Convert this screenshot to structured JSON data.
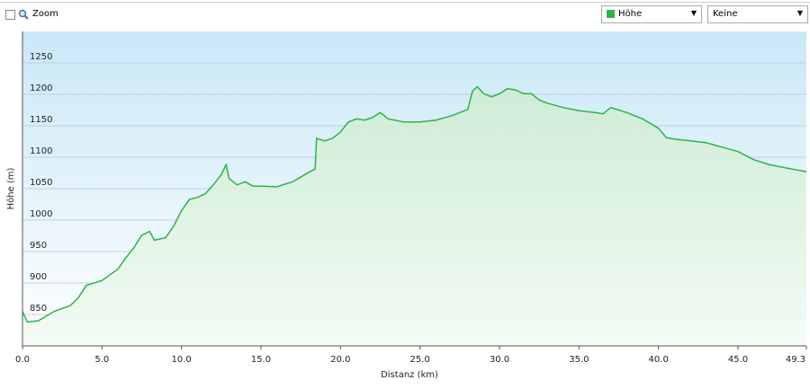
{
  "toolbar": {
    "zoom": "Zoom",
    "series_select": "Höhe",
    "second_select": "Keine"
  },
  "chart_data": {
    "type": "area",
    "x_label": "Distanz  (km)",
    "y_label": "Höhe (m)",
    "xlim": [
      0,
      49.3
    ],
    "ylim": [
      800,
      1300
    ],
    "xticks": [
      {
        "value": 0,
        "label": "0.0"
      },
      {
        "value": 5,
        "label": "5.0"
      },
      {
        "value": 10,
        "label": "10.0"
      },
      {
        "value": 15,
        "label": "15.0"
      },
      {
        "value": 20,
        "label": "20.0"
      },
      {
        "value": 25,
        "label": "25.0"
      },
      {
        "value": 30,
        "label": "30.0"
      },
      {
        "value": 35,
        "label": "35.0"
      },
      {
        "value": 40,
        "label": "40.0"
      },
      {
        "value": 45,
        "label": "45.0"
      },
      49.3
    ],
    "yticks": [
      850,
      900,
      950,
      1000,
      1050,
      1100,
      1150,
      1200,
      1250
    ],
    "grid": true,
    "series": [
      {
        "name": "Höhe",
        "color": "#2eb24b",
        "x": [
          0,
          0.3,
          1,
          2,
          3,
          3.5,
          4,
          5,
          6,
          6.5,
          7,
          7.5,
          8,
          8.3,
          9,
          9.5,
          10,
          10.5,
          11,
          11.5,
          12,
          12.5,
          12.8,
          13,
          13.5,
          14,
          14.5,
          15,
          16,
          17,
          18,
          18.4,
          18.5,
          19,
          19.5,
          20,
          20.5,
          21,
          21.5,
          22,
          22.5,
          23,
          24,
          25,
          26,
          27,
          28,
          28.3,
          28.6,
          29,
          29.5,
          30,
          30.5,
          31,
          31.5,
          32,
          32.5,
          33,
          34,
          35,
          36,
          36.5,
          37,
          38,
          39,
          40,
          40.5,
          41,
          42,
          43,
          44,
          45,
          46,
          47,
          48,
          49.3
        ],
        "values": [
          855,
          838,
          840,
          855,
          864,
          876,
          896,
          904,
          922,
          940,
          956,
          976,
          982,
          968,
          972,
          990,
          1015,
          1033,
          1036,
          1042,
          1056,
          1072,
          1088,
          1066,
          1056,
          1061,
          1054,
          1054,
          1053,
          1061,
          1076,
          1081,
          1130,
          1126,
          1130,
          1140,
          1156,
          1161,
          1159,
          1163,
          1171,
          1161,
          1156,
          1156,
          1159,
          1166,
          1176,
          1205,
          1212,
          1201,
          1196,
          1201,
          1209,
          1207,
          1201,
          1201,
          1191,
          1186,
          1179,
          1174,
          1171,
          1169,
          1179,
          1171,
          1161,
          1146,
          1131,
          1129,
          1126,
          1123,
          1116,
          1109,
          1096,
          1088,
          1083,
          1077
        ]
      }
    ]
  }
}
